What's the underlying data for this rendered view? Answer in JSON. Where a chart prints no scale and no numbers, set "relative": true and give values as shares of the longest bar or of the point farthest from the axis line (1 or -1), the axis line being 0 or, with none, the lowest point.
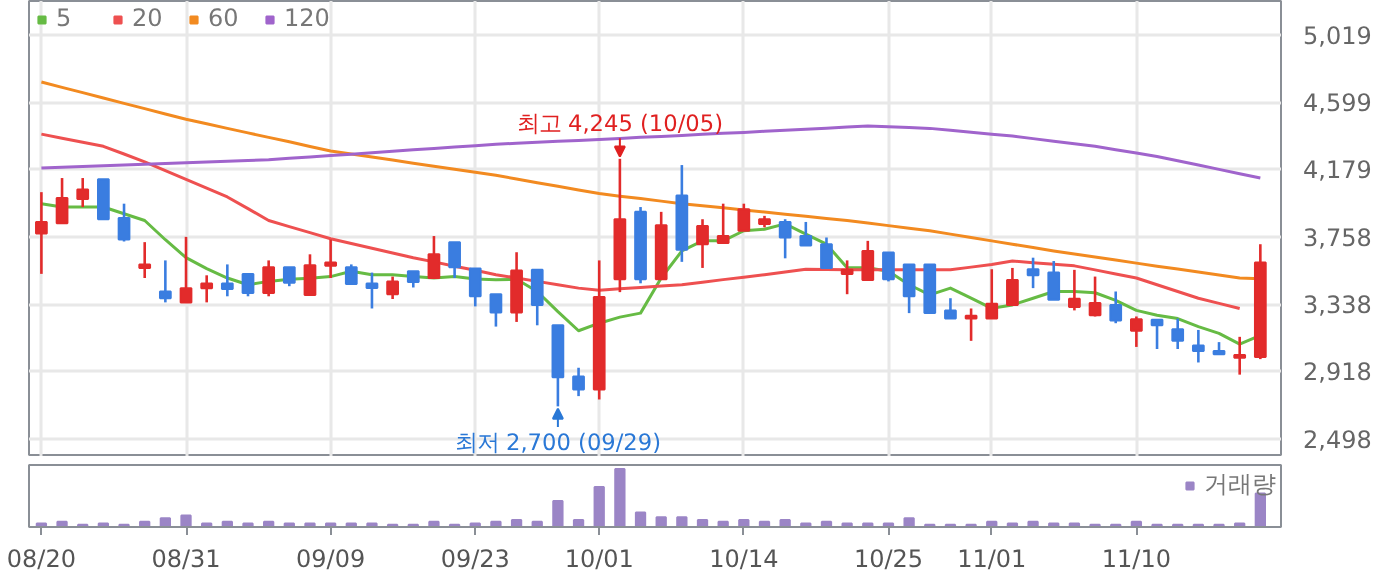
{
  "chart_data": [
    {
      "type": "candlestick",
      "categories": [
        null,
        null,
        null,
        null,
        null,
        null,
        null,
        null,
        null,
        null,
        null,
        null,
        null,
        null,
        null,
        null,
        null,
        null,
        null,
        null,
        null,
        null,
        null,
        null,
        null,
        null,
        null,
        null,
        null,
        null,
        null,
        null,
        null,
        null,
        null,
        null,
        null,
        null,
        null,
        null,
        null,
        null,
        null,
        null,
        null,
        null,
        null,
        null,
        null,
        null,
        null,
        null,
        null,
        null,
        null,
        null,
        null,
        null,
        null,
        null
      ],
      "ohlc": [
        [
          3779,
          4037,
          3527,
          3851
        ],
        [
          3843,
          4125,
          3843,
          4001
        ],
        [
          3994,
          4125,
          3944,
          4054
        ],
        [
          4117,
          4117,
          3868,
          3868
        ],
        [
          3876,
          3965,
          3729,
          3742
        ],
        [
          3564,
          3725,
          3501,
          3586
        ],
        [
          3417,
          3611,
          3349,
          3375
        ],
        [
          3349,
          3758,
          3349,
          3437
        ],
        [
          3437,
          3518,
          3349,
          3467
        ],
        [
          3467,
          3586,
          3387,
          3433
        ],
        [
          3526,
          3526,
          3387,
          3408
        ],
        [
          3408,
          3611,
          3387,
          3568
        ],
        [
          3568,
          3568,
          3450,
          3471
        ],
        [
          3395,
          3649,
          3395,
          3581
        ],
        [
          3577,
          3741,
          3501,
          3598
        ],
        [
          3569,
          3586,
          3463,
          3463
        ],
        [
          3467,
          3535,
          3311,
          3438
        ],
        [
          3400,
          3510,
          3370,
          3480
        ],
        [
          3543,
          3543,
          3442,
          3476
        ],
        [
          3501,
          3763,
          3501,
          3649
        ],
        [
          3725,
          3725,
          3501,
          3569
        ],
        [
          3560,
          3560,
          3324,
          3387
        ],
        [
          3400,
          3400,
          3198,
          3286
        ],
        [
          3286,
          3662,
          3227,
          3548
        ],
        [
          3552,
          3552,
          3206,
          3333
        ],
        [
          3206,
          3206,
          2700,
          2881
        ],
        [
          2886,
          2941,
          2764,
          2806
        ],
        [
          2806,
          3611,
          2743,
          3383
        ],
        [
          3493,
          4245,
          3413,
          3868
        ],
        [
          3914,
          3944,
          3468,
          3493
        ],
        [
          3493,
          3914,
          3493,
          3830
        ],
        [
          4016,
          4206,
          3602,
          3678
        ],
        [
          3712,
          3868,
          3564,
          3826
        ],
        [
          3720,
          3965,
          3720,
          3763
        ],
        [
          3796,
          3965,
          3796,
          3931
        ],
        [
          3838,
          3889,
          3817,
          3868
        ],
        [
          3851,
          3868,
          3624,
          3754
        ],
        [
          3763,
          3851,
          3704,
          3704
        ],
        [
          3712,
          3754,
          3564,
          3564
        ],
        [
          3526,
          3611,
          3400,
          3552
        ],
        [
          3488,
          3733,
          3488,
          3670
        ],
        [
          3661,
          3661,
          3480,
          3493
        ],
        [
          3586,
          3586,
          3282,
          3387
        ],
        [
          3586,
          3586,
          3282,
          3282
        ],
        [
          3299,
          3375,
          3248,
          3248
        ],
        [
          3248,
          3311,
          3109,
          3265
        ],
        [
          3248,
          3556,
          3248,
          3341
        ],
        [
          3333,
          3564,
          3333,
          3489
        ],
        [
          3556,
          3628,
          3438,
          3518
        ],
        [
          3535,
          3607,
          3366,
          3366
        ],
        [
          3320,
          3552,
          3299,
          3371
        ],
        [
          3269,
          3510,
          3261,
          3345
        ],
        [
          3333,
          3417,
          3219,
          3236
        ],
        [
          3172,
          3261,
          3071,
          3244
        ],
        [
          3240,
          3240,
          3058,
          3206
        ],
        [
          3181,
          3248,
          3058,
          3109
        ],
        [
          3080,
          3177,
          2974,
          3046
        ],
        [
          3046,
          3101,
          3025,
          3025
        ],
        [
          3004,
          3134,
          2898,
          3021
        ],
        [
          3008,
          3712,
          2995,
          3598
        ]
      ],
      "colors": [
        "#e22b2b",
        "#e22b2b",
        "#e22b2b",
        "#3a7de0",
        "#3a7de0",
        "#e22b2b",
        "#3a7de0",
        "#e22b2b",
        "#e22b2b",
        "#3a7de0",
        "#3a7de0",
        "#e22b2b",
        "#3a7de0",
        "#e22b2b",
        "#e22b2b",
        "#3a7de0",
        "#3a7de0",
        "#e22b2b",
        "#3a7de0",
        "#e22b2b",
        "#3a7de0",
        "#3a7de0",
        "#3a7de0",
        "#e22b2b",
        "#3a7de0",
        "#3a7de0",
        "#3a7de0",
        "#e22b2b",
        "#e22b2b",
        "#3a7de0",
        "#e22b2b",
        "#3a7de0",
        "#e22b2b",
        "#e22b2b",
        "#e22b2b",
        "#e22b2b",
        "#3a7de0",
        "#3a7de0",
        "#3a7de0",
        "#e22b2b",
        "#e22b2b",
        "#3a7de0",
        "#3a7de0",
        "#3a7de0",
        "#3a7de0",
        "#e22b2b",
        "#e22b2b",
        "#e22b2b",
        "#3a7de0",
        "#3a7de0",
        "#e22b2b",
        "#e22b2b",
        "#3a7de0",
        "#e22b2b",
        "#3a7de0",
        "#3a7de0",
        "#3a7de0",
        "#3a7de0",
        "#e22b2b",
        "#e22b2b"
      ],
      "series": [
        {
          "name": "5",
          "type": "line",
          "color": "#66bb44",
          "values": [
            3965,
            3944,
            3944,
            3944,
            3902,
            3860,
            3740,
            3628,
            3560,
            3501,
            3459,
            3480,
            3493,
            3500,
            3510,
            3543,
            3522,
            3522,
            3510,
            3501,
            3510,
            3495,
            3490,
            3493,
            3417,
            3291,
            3172,
            3219,
            3257,
            3282,
            3501,
            3670,
            3733,
            3733,
            3796,
            3805,
            3839,
            3775,
            3712,
            3565,
            3565,
            3543,
            3459,
            3396,
            3438,
            3375,
            3312,
            3333,
            3375,
            3417,
            3417,
            3409,
            3362,
            3299,
            3269,
            3248,
            3198,
            3156,
            3088,
            3143
          ]
        },
        {
          "name": "20",
          "type": "line",
          "color": "#ee5050",
          "values": [
            4399,
            4374,
            4348,
            4323,
            4275,
            4226,
            4171,
            4117,
            4062,
            4007,
            3934,
            3860,
            3822,
            3784,
            3746,
            3716,
            3687,
            3657,
            3628,
            3602,
            3575,
            3549,
            3522,
            3501,
            3480,
            3459,
            3438,
            3425,
            3434,
            3442,
            3451,
            3459,
            3475,
            3491,
            3506,
            3522,
            3539,
            3556,
            3555,
            3553,
            3552,
            3552,
            3552,
            3552,
            3552,
            3569,
            3586,
            3607,
            3597,
            3587,
            3577,
            3552,
            3526,
            3501,
            3459,
            3417,
            3375,
            3343,
            3311,
            null
          ]
        },
        {
          "name": "60",
          "type": "line",
          "color": "#f28a20",
          "values": [
            4724,
            4691,
            4658,
            4625,
            4591,
            4558,
            4525,
            4492,
            4464,
            4435,
            4407,
            4379,
            4351,
            4322,
            4294,
            4275,
            4256,
            4237,
            4218,
            4199,
            4180,
            4161,
            4142,
            4119,
            4096,
            4074,
            4051,
            4028,
            4012,
            3997,
            3981,
            3965,
            3952,
            3939,
            3926,
            3913,
            3899,
            3886,
            3873,
            3860,
            3844,
            3828,
            3812,
            3796,
            3775,
            3754,
            3733,
            3712,
            3691,
            3670,
            3651,
            3632,
            3613,
            3594,
            3575,
            3557,
            3538,
            3520,
            3501,
            3497
          ]
        },
        {
          "name": "120",
          "type": "line",
          "color": "#a064cc",
          "values": [
            4188,
            4193,
            4197,
            4202,
            4207,
            4211,
            4216,
            4221,
            4225,
            4230,
            4234,
            4239,
            4248,
            4256,
            4265,
            4274,
            4283,
            4292,
            4301,
            4310,
            4319,
            4327,
            4336,
            4342,
            4348,
            4354,
            4360,
            4366,
            4372,
            4379,
            4385,
            4391,
            4398,
            4404,
            4410,
            4417,
            4423,
            4429,
            4436,
            4443,
            4450,
            4445,
            4440,
            4435,
            4423,
            4411,
            4399,
            4387,
            4371,
            4355,
            4339,
            4323,
            4302,
            4281,
            4260,
            4233,
            4206,
            4179,
            4152,
            4125
          ]
        }
      ],
      "ylim": [
        2384,
        5230
      ],
      "yticks": [
        {
          "value": 5019,
          "label": "5,019"
        },
        {
          "value": 4599,
          "label": "4,599"
        },
        {
          "value": 4179,
          "label": "4,179"
        },
        {
          "value": 3758,
          "label": "3,758"
        },
        {
          "value": 3338,
          "label": "3,338"
        },
        {
          "value": 2918,
          "label": "2,918"
        },
        {
          "value": 2498,
          "label": "2,498"
        }
      ],
      "annotations": [
        {
          "text": "최고 4,245 (10/05)",
          "y": 4245
        },
        {
          "text": "최저 2,700 (09/29)",
          "y": 2700
        }
      ],
      "grid": true,
      "legend": "top left",
      "tick_labels": "y"
    },
    {
      "type": "bar",
      "relative": true,
      "categories": [
        "08/20",
        null,
        null,
        null,
        null,
        null,
        null,
        "08/31",
        null,
        null,
        null,
        null,
        null,
        null,
        "09/09",
        null,
        null,
        null,
        null,
        null,
        null,
        "09/23",
        null,
        null,
        null,
        null,
        null,
        "10/01",
        null,
        null,
        null,
        null,
        null,
        null,
        "10/14",
        null,
        null,
        null,
        null,
        null,
        null,
        "10/25",
        null,
        null,
        null,
        null,
        "11/01",
        null,
        null,
        null,
        null,
        null,
        null,
        "11/10",
        null,
        null,
        null,
        null,
        null,
        null
      ],
      "series": [
        {
          "name": "거래량",
          "color": "#9b85c6",
          "values": [
            0.06,
            0.09,
            0.04,
            0.06,
            0.04,
            0.09,
            0.15,
            0.2,
            0.06,
            0.09,
            0.06,
            0.09,
            0.06,
            0.06,
            0.06,
            0.06,
            0.06,
            0.04,
            0.04,
            0.09,
            0.04,
            0.06,
            0.09,
            0.12,
            0.09,
            0.45,
            0.12,
            0.69,
            1,
            0.25,
            0.17,
            0.17,
            0.12,
            0.09,
            0.12,
            0.09,
            0.12,
            0.06,
            0.09,
            0.06,
            0.06,
            0.06,
            0.15,
            0.04,
            0.04,
            0.04,
            0.09,
            0.06,
            0.09,
            0.06,
            0.06,
            0.04,
            0.04,
            0.09,
            0.04,
            0.04,
            0.04,
            0.04,
            0.06,
            0.58
          ]
        }
      ],
      "legend": "top right",
      "tick_labels": "x"
    }
  ]
}
